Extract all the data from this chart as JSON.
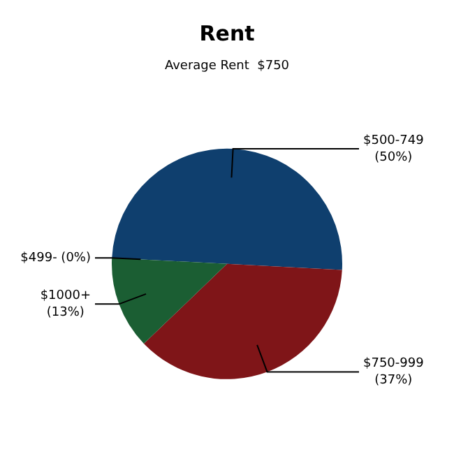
{
  "chart_data": {
    "type": "pie",
    "title": "Rent",
    "subtitle": "Average Rent  $750",
    "categories": [
      "$500-749",
      "$750-999",
      "$1000+",
      "$499-"
    ],
    "values": [
      50,
      37,
      13,
      0
    ],
    "colors": [
      "#0f3f6e",
      "#7f1518",
      "#1b5e33",
      "#3a6e9e"
    ],
    "value_labels": [
      "(50%)",
      "(37%)",
      "(13%)",
      "(0%)"
    ]
  }
}
